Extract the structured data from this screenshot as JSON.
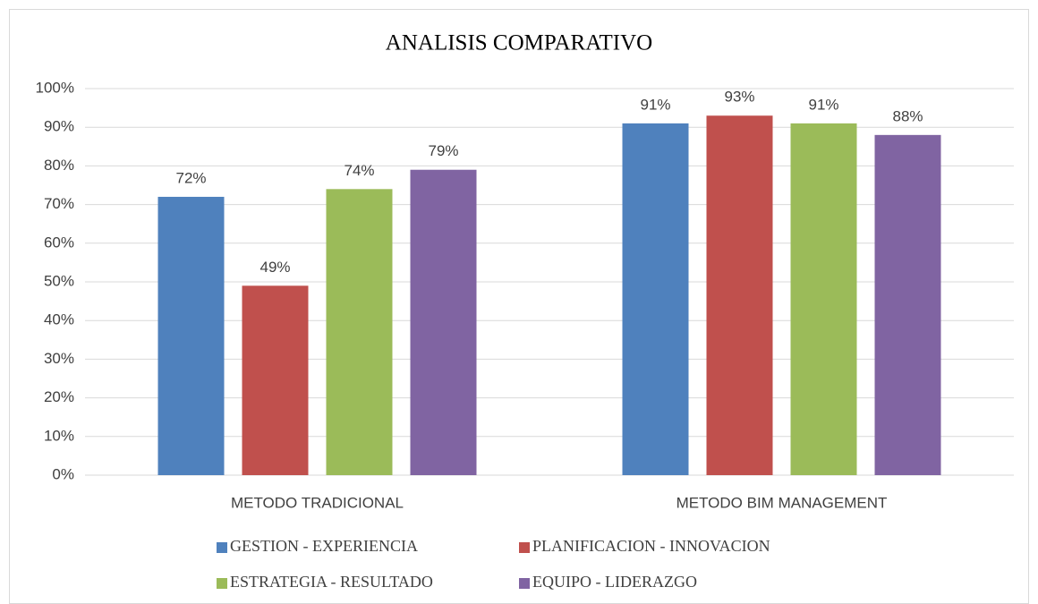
{
  "chart_data": {
    "type": "bar",
    "title": "ANALISIS COMPARATIVO",
    "categories": [
      "METODO TRADICIONAL",
      "METODO BIM MANAGEMENT"
    ],
    "series": [
      {
        "name": "GESTION - EXPERIENCIA",
        "color": "#4f81bd",
        "values": [
          72,
          91
        ],
        "value_labels": [
          "72%",
          "91%"
        ]
      },
      {
        "name": "PLANIFICACION - INNOVACION",
        "color": "#c0504d",
        "values": [
          49,
          93
        ],
        "value_labels": [
          "49%",
          "93%"
        ]
      },
      {
        "name": "ESTRATEGIA - RESULTADO",
        "color": "#9bbb59",
        "values": [
          74,
          91
        ],
        "value_labels": [
          "74%",
          "91%"
        ]
      },
      {
        "name": "EQUIPO - LIDERAZGO",
        "color": "#8064a2",
        "values": [
          79,
          88
        ],
        "value_labels": [
          "79%",
          "88%"
        ]
      }
    ],
    "ylim": [
      0,
      100
    ],
    "yticks": [
      {
        "value": 0,
        "label": "0%"
      },
      {
        "value": 10,
        "label": "10%"
      },
      {
        "value": 20,
        "label": "20%"
      },
      {
        "value": 30,
        "label": "30%"
      },
      {
        "value": 40,
        "label": "40%"
      },
      {
        "value": 50,
        "label": "50%"
      },
      {
        "value": 60,
        "label": "60%"
      },
      {
        "value": 70,
        "label": "70%"
      },
      {
        "value": 80,
        "label": "80%"
      },
      {
        "value": 90,
        "label": "90%"
      },
      {
        "value": 100,
        "label": "100%"
      }
    ],
    "grid": true,
    "legend": "bottom"
  }
}
